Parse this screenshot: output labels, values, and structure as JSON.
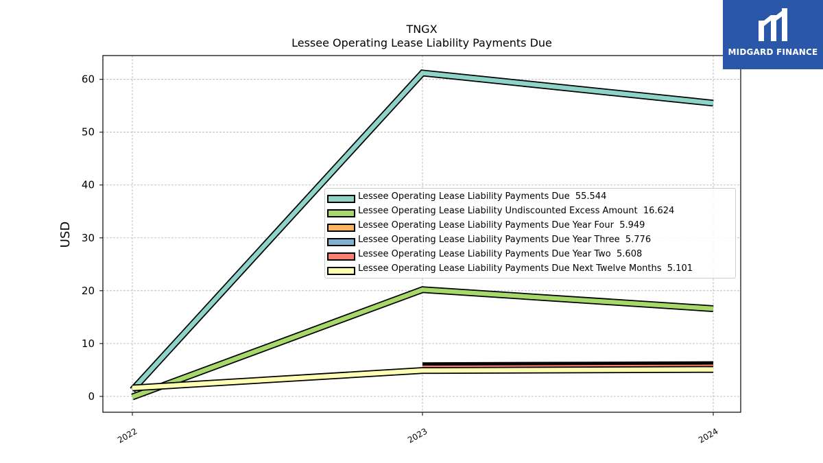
{
  "chart_data": {
    "type": "line",
    "title": "TNGX",
    "subtitle": "Lessee Operating Lease Liability Payments Due",
    "ylabel": "USD",
    "xlabel": "",
    "x": [
      "2022",
      "2023",
      "2024"
    ],
    "ylim": [
      -3,
      64.5
    ],
    "yticks": [
      0,
      10,
      20,
      30,
      40,
      50,
      60
    ],
    "grid": true,
    "legend_position": "center-right",
    "series": [
      {
        "name": "Lessee Operating Lease Liability Payments Due",
        "legend_value": "55.544",
        "values": [
          1.2,
          61.2,
          55.5
        ],
        "color": "#8dd3c7"
      },
      {
        "name": "Lessee Operating Lease Liability Undiscounted Excess Amount",
        "legend_value": "16.624",
        "values": [
          -0.1,
          20.2,
          16.6
        ],
        "color": "#a6d96a"
      },
      {
        "name": "Lessee Operating Lease Liability Payments Due Year Four",
        "legend_value": "5.949",
        "values": [
          null,
          5.8,
          6.0
        ],
        "color": "#fdb462"
      },
      {
        "name": "Lessee Operating Lease Liability Payments Due Year Three",
        "legend_value": "5.776",
        "values": [
          null,
          5.6,
          5.8
        ],
        "color": "#80b1d3"
      },
      {
        "name": "Lessee Operating Lease Liability Payments Due Year Two",
        "legend_value": "5.608",
        "values": [
          null,
          5.4,
          5.6
        ],
        "color": "#fb8072"
      },
      {
        "name": "Lessee Operating Lease Liability Payments Due Next Twelve Months",
        "legend_value": "5.101",
        "values": [
          1.6,
          4.9,
          5.1
        ],
        "color": "#ffffb3"
      }
    ]
  },
  "logo": {
    "text": "MIDGARD FINANCE",
    "color": "#2b57a8"
  }
}
